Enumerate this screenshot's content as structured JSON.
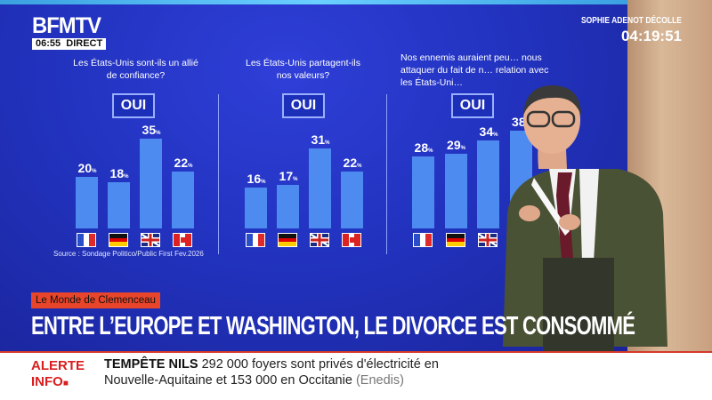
{
  "channel": {
    "logo": "BFMTV",
    "time": "06:55",
    "live": "DIRECT"
  },
  "program": {
    "presenter": "SOPHIE ADENOT DÉCOLLE",
    "countdown": "04:19:51"
  },
  "charts": [
    {
      "question": "Les États-Unis sont-ils un allié de confiance?",
      "answer_label": "OUI"
    },
    {
      "question": "Les États-Unis partagent-ils nos valeurs?",
      "answer_label": "OUI"
    },
    {
      "question": "Nos ennemis auraient peu… nous attaquer du fait de n… relation avec les États-Uni…",
      "answer_label": "OUI"
    }
  ],
  "chart_data": [
    {
      "type": "bar",
      "categories": [
        "France",
        "Allemagne",
        "Royaume-Uni",
        "Canada"
      ],
      "values": [
        20,
        18,
        35,
        22
      ],
      "unit": "%"
    },
    {
      "type": "bar",
      "categories": [
        "France",
        "Allemagne",
        "Royaume-Uni",
        "Canada"
      ],
      "values": [
        16,
        17,
        31,
        22
      ],
      "unit": "%"
    },
    {
      "type": "bar",
      "categories": [
        "France",
        "Allemagne",
        "Royaume-Uni",
        "Canada"
      ],
      "values": [
        28,
        29,
        34,
        38
      ],
      "unit": "%"
    }
  ],
  "source": "Source : Sondage Politico/Public First Fev.2026",
  "segment_tag": "Le Monde de Clemenceau",
  "headline": "ENTRE L’EUROPE ET WASHINGTON, LE DIVORCE EST CONSOMMÉ",
  "ticker": {
    "label_line1": "ALERTE",
    "label_line2": "INFO",
    "topic": "TEMPÊTE NILS",
    "line1": "292 000 foyers sont privés d'électricité en",
    "line2": "Nouvelle-Aquitaine et 153 000 en Occitanie",
    "source": "(Enedis)"
  },
  "colors": {
    "bar": "#4d8bf0",
    "background": "#2233c0",
    "alert": "#d81e1e",
    "tag": "#e8452a"
  }
}
